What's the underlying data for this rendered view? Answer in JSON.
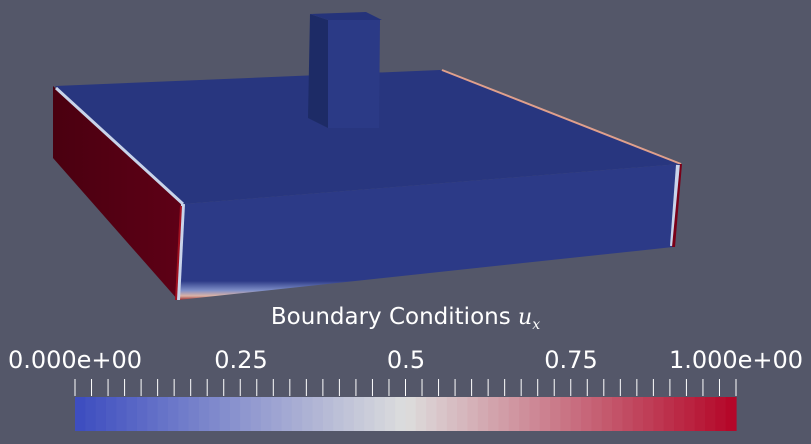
{
  "legend": {
    "title_prefix": "Boundary Conditions ",
    "symbol": "u",
    "subscript": "x",
    "tick_labels": [
      {
        "text": "0.000e+00",
        "value": 0.0
      },
      {
        "text": "0.25",
        "value": 0.25
      },
      {
        "text": "0.5",
        "value": 0.5
      },
      {
        "text": "0.75",
        "value": 0.75
      },
      {
        "text": "1.000e+00",
        "value": 1.0
      }
    ],
    "range": [
      0,
      1
    ],
    "colormap": "cool-to-warm",
    "colormap_stops": [
      "#3b4cc0",
      "#dddddd",
      "#b40426"
    ]
  },
  "scene": {
    "background": "#545769",
    "body_color": "#2b3a86",
    "top_color": "#28367f",
    "fixed_face_color": "#4e0012",
    "edge_highlight": "#e8a08a"
  }
}
